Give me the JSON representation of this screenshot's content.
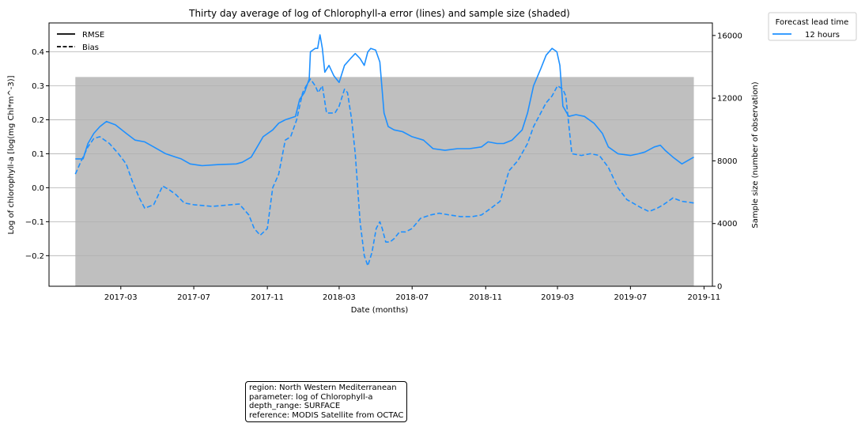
{
  "chart_data": {
    "type": "line",
    "title": "Thirty day average of log of Chlorophyll-a error (lines) and sample size (shaded)",
    "xlabel": "Date (months)",
    "ylabel": "Log of chlorophyll-a [log(mg Chl*m^-3)]",
    "y2label": "Sample size (number of observation)",
    "x_ticks": [
      "2017-03",
      "2017-07",
      "2017-11",
      "2018-03",
      "2018-07",
      "2018-11",
      "2019-03",
      "2019-07",
      "2019-11"
    ],
    "ylim": [
      -0.29,
      0.485
    ],
    "y_ticks": [
      "−0.2",
      "−0.1",
      "0.0",
      "0.1",
      "0.2",
      "0.3",
      "0.4"
    ],
    "y2lim": [
      0,
      16800
    ],
    "y2_ticks": [
      "0",
      "4000",
      "8000",
      "12000",
      "16000"
    ],
    "grid": "horizontal",
    "line_color": "#1e90ff",
    "shade_color": "#bfbfbf",
    "style_legend": {
      "placement": "top-left",
      "entries": [
        {
          "label": "RMSE",
          "style": "solid"
        },
        {
          "label": "Bias",
          "style": "dashed"
        }
      ]
    },
    "lead_legend": {
      "placement": "outside-top-right",
      "title": "Forecast lead time",
      "entries": [
        {
          "label": "12 hours",
          "color": "#1e90ff"
        }
      ]
    },
    "sample_size": {
      "x": [
        "2016-12-15",
        "2019-10-15"
      ],
      "values": [
        13350,
        13350
      ]
    },
    "series": [
      {
        "name": "RMSE",
        "style": "solid",
        "x": [
          "2016-12-15",
          "2016-12-28",
          "2017-01-05",
          "2017-01-15",
          "2017-01-25",
          "2017-02-05",
          "2017-02-20",
          "2017-03-10",
          "2017-03-25",
          "2017-04-10",
          "2017-04-25",
          "2017-05-15",
          "2017-06-01",
          "2017-06-10",
          "2017-06-25",
          "2017-07-15",
          "2017-08-10",
          "2017-09-10",
          "2017-09-20",
          "2017-10-05",
          "2017-10-15",
          "2017-10-25",
          "2017-11-10",
          "2017-11-20",
          "2017-12-01",
          "2017-12-10",
          "2017-12-18",
          "2017-12-25",
          "2018-01-02",
          "2018-01-10",
          "2018-01-12",
          "2018-01-16",
          "2018-01-20",
          "2018-01-24",
          "2018-01-28",
          "2018-02-01",
          "2018-02-05",
          "2018-02-12",
          "2018-02-20",
          "2018-03-01",
          "2018-03-10",
          "2018-03-20",
          "2018-03-28",
          "2018-04-05",
          "2018-04-12",
          "2018-04-18",
          "2018-04-23",
          "2018-05-01",
          "2018-05-08",
          "2018-05-15",
          "2018-05-22",
          "2018-06-01",
          "2018-06-15",
          "2018-07-01",
          "2018-07-20",
          "2018-08-05",
          "2018-08-25",
          "2018-09-15",
          "2018-10-05",
          "2018-10-25",
          "2018-11-05",
          "2018-11-20",
          "2018-12-01",
          "2018-12-15",
          "2019-01-01",
          "2019-01-10",
          "2019-01-20",
          "2019-02-01",
          "2019-02-10",
          "2019-02-20",
          "2019-02-28",
          "2019-03-05",
          "2019-03-10",
          "2019-03-20",
          "2019-04-01",
          "2019-04-15",
          "2019-05-01",
          "2019-05-15",
          "2019-05-25",
          "2019-06-10",
          "2019-07-01",
          "2019-07-15",
          "2019-07-25",
          "2019-08-10",
          "2019-08-20",
          "2019-08-28",
          "2019-09-10",
          "2019-09-25",
          "2019-10-15"
        ],
        "values": [
          0.085,
          0.085,
          0.13,
          0.16,
          0.18,
          0.195,
          0.185,
          0.16,
          0.14,
          0.135,
          0.12,
          0.1,
          0.09,
          0.085,
          0.07,
          0.065,
          0.068,
          0.07,
          0.075,
          0.09,
          0.12,
          0.15,
          0.17,
          0.19,
          0.2,
          0.205,
          0.21,
          0.26,
          0.28,
          0.32,
          0.4,
          0.405,
          0.41,
          0.41,
          0.45,
          0.41,
          0.34,
          0.36,
          0.33,
          0.31,
          0.36,
          0.38,
          0.395,
          0.38,
          0.36,
          0.4,
          0.41,
          0.405,
          0.37,
          0.22,
          0.18,
          0.17,
          0.165,
          0.15,
          0.14,
          0.115,
          0.11,
          0.115,
          0.115,
          0.12,
          0.135,
          0.13,
          0.13,
          0.14,
          0.17,
          0.22,
          0.3,
          0.35,
          0.39,
          0.41,
          0.4,
          0.36,
          0.24,
          0.21,
          0.215,
          0.21,
          0.19,
          0.16,
          0.12,
          0.1,
          0.095,
          0.1,
          0.105,
          0.12,
          0.125,
          0.11,
          0.09,
          0.07,
          0.09
        ]
      },
      {
        "name": "Bias",
        "style": "dashed",
        "x": [
          "2016-12-15",
          "2016-12-25",
          "2017-01-05",
          "2017-01-15",
          "2017-01-25",
          "2017-02-10",
          "2017-02-25",
          "2017-03-10",
          "2017-03-20",
          "2017-04-01",
          "2017-04-10",
          "2017-04-25",
          "2017-05-10",
          "2017-05-20",
          "2017-06-01",
          "2017-06-15",
          "2017-07-01",
          "2017-08-01",
          "2017-09-01",
          "2017-09-15",
          "2017-10-01",
          "2017-10-10",
          "2017-10-20",
          "2017-11-01",
          "2017-11-10",
          "2017-11-20",
          "2017-12-01",
          "2017-12-10",
          "2017-12-20",
          "2017-12-30",
          "2018-01-05",
          "2018-01-12",
          "2018-01-20",
          "2018-01-25",
          "2018-02-01",
          "2018-02-08",
          "2018-02-15",
          "2018-02-22",
          "2018-03-01",
          "2018-03-10",
          "2018-03-15",
          "2018-03-22",
          "2018-03-28",
          "2018-04-05",
          "2018-04-12",
          "2018-04-18",
          "2018-04-25",
          "2018-05-02",
          "2018-05-08",
          "2018-05-12",
          "2018-05-18",
          "2018-05-25",
          "2018-06-01",
          "2018-06-10",
          "2018-06-20",
          "2018-07-01",
          "2018-07-15",
          "2018-08-01",
          "2018-08-15",
          "2018-09-01",
          "2018-09-20",
          "2018-10-10",
          "2018-10-25",
          "2018-11-10",
          "2018-11-25",
          "2018-12-10",
          "2018-12-25",
          "2019-01-10",
          "2019-01-20",
          "2019-02-01",
          "2019-02-10",
          "2019-02-20",
          "2019-03-01",
          "2019-03-10",
          "2019-03-15",
          "2019-03-25",
          "2019-04-10",
          "2019-04-25",
          "2019-05-10",
          "2019-05-25",
          "2019-06-10",
          "2019-06-25",
          "2019-07-10",
          "2019-07-20",
          "2019-08-01",
          "2019-08-15",
          "2019-08-25",
          "2019-09-10",
          "2019-09-25",
          "2019-10-15"
        ],
        "values": [
          0.04,
          0.08,
          0.12,
          0.145,
          0.15,
          0.13,
          0.1,
          0.07,
          0.02,
          -0.03,
          -0.06,
          -0.05,
          0.005,
          -0.005,
          -0.02,
          -0.045,
          -0.05,
          -0.055,
          -0.05,
          -0.048,
          -0.08,
          -0.12,
          -0.14,
          -0.12,
          0.0,
          0.04,
          0.14,
          0.15,
          0.2,
          0.28,
          0.3,
          0.32,
          0.3,
          0.28,
          0.3,
          0.22,
          0.22,
          0.22,
          0.24,
          0.29,
          0.28,
          0.2,
          0.1,
          -0.1,
          -0.2,
          -0.23,
          -0.19,
          -0.12,
          -0.1,
          -0.12,
          -0.16,
          -0.16,
          -0.15,
          -0.13,
          -0.13,
          -0.12,
          -0.09,
          -0.08,
          -0.075,
          -0.08,
          -0.085,
          -0.085,
          -0.08,
          -0.06,
          -0.04,
          0.05,
          0.08,
          0.13,
          0.18,
          0.22,
          0.25,
          0.27,
          0.3,
          0.29,
          0.27,
          0.1,
          0.095,
          0.1,
          0.095,
          0.06,
          0.0,
          -0.035,
          -0.05,
          -0.06,
          -0.07,
          -0.06,
          -0.05,
          -0.03,
          -0.04,
          -0.045
        ]
      }
    ]
  },
  "info_box": {
    "region": "region: North Western Mediterranean",
    "parameter": "parameter: log of Chlorophyll-a",
    "depth_range": "depth_range: SURFACE",
    "reference": "reference: MODIS Satellite from OCTAC"
  }
}
